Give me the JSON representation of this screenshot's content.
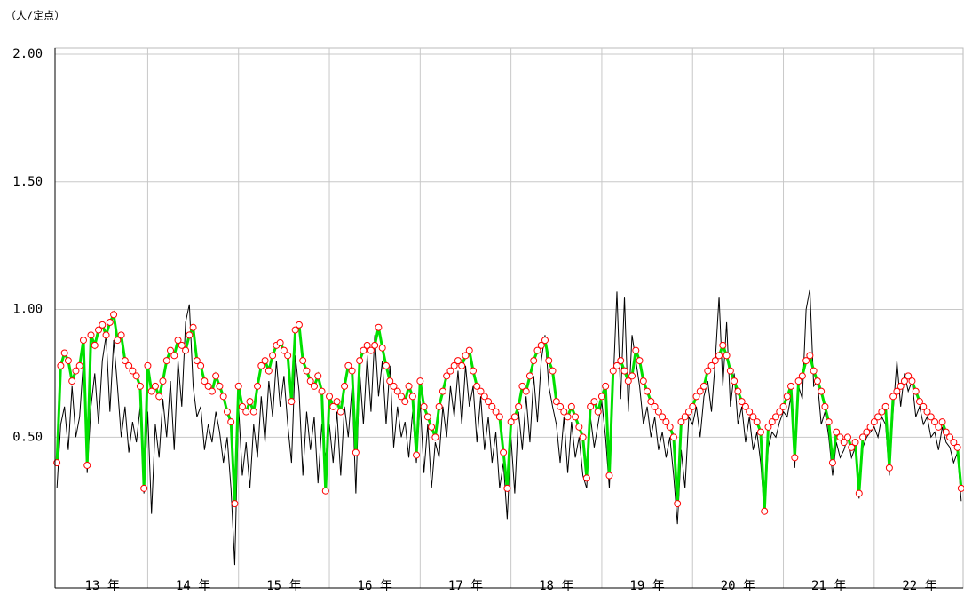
{
  "chart_data": {
    "type": "line",
    "y_unit_label": "（人/定点）",
    "categories": [
      null,
      null,
      null,
      null,
      null,
      null,
      null,
      null,
      null,
      null,
      null,
      null,
      "13 年",
      null,
      null,
      null,
      null,
      null,
      null,
      null,
      null,
      null,
      null,
      null,
      null,
      null,
      null,
      null,
      null,
      null,
      null,
      null,
      null,
      null,
      null,
      null,
      "14 年",
      null,
      null,
      null,
      null,
      null,
      null,
      null,
      null,
      null,
      null,
      null,
      null,
      null,
      null,
      null,
      null,
      null,
      null,
      null,
      null,
      null,
      null,
      null,
      "15 年",
      null,
      null,
      null,
      null,
      null,
      null,
      null,
      null,
      null,
      null,
      null,
      null,
      null,
      null,
      null,
      null,
      null,
      null,
      null,
      null,
      null,
      null,
      null,
      "16 年",
      null,
      null,
      null,
      null,
      null,
      null,
      null,
      null,
      null,
      null,
      null,
      null,
      null,
      null,
      null,
      null,
      null,
      null,
      null,
      null,
      null,
      null,
      null,
      "17 年",
      null,
      null,
      null,
      null,
      null,
      null,
      null,
      null,
      null,
      null,
      null,
      null,
      null,
      null,
      null,
      null,
      null,
      null,
      null,
      null,
      null,
      null,
      null,
      "18 年",
      null,
      null,
      null,
      null,
      null,
      null,
      null,
      null,
      null,
      null,
      null,
      null,
      null,
      null,
      null,
      null,
      null,
      null,
      null,
      null,
      null,
      null,
      null,
      "19 年",
      null,
      null,
      null,
      null,
      null,
      null,
      null,
      null,
      null,
      null,
      null,
      null,
      null,
      null,
      null,
      null,
      null,
      null,
      null,
      null,
      null,
      null,
      null,
      "20 年",
      null,
      null,
      null,
      null,
      null,
      null,
      null,
      null,
      null,
      null,
      null,
      null,
      null,
      null,
      null,
      null,
      null,
      null,
      null,
      null,
      null,
      null,
      null,
      "21 年",
      null,
      null,
      null,
      null,
      null,
      null,
      null,
      null,
      null,
      null,
      null,
      null,
      null,
      null,
      null,
      null,
      null,
      null,
      null,
      null,
      null,
      null,
      null,
      "22 年",
      null,
      null,
      null,
      null,
      null,
      null,
      null,
      null,
      null,
      null,
      null
    ],
    "series": [
      {
        "color": "#000000",
        "values": [
          0.3,
          0.55,
          0.62,
          0.45,
          0.7,
          0.5,
          0.58,
          0.8,
          0.36,
          0.62,
          0.75,
          0.55,
          0.8,
          0.9,
          0.6,
          0.88,
          0.7,
          0.5,
          0.62,
          0.44,
          0.56,
          0.48,
          0.62,
          0.28,
          0.6,
          0.2,
          0.55,
          0.42,
          0.65,
          0.5,
          0.72,
          0.45,
          0.8,
          0.62,
          0.95,
          1.02,
          0.7,
          0.58,
          0.62,
          0.45,
          0.55,
          0.48,
          0.6,
          0.52,
          0.4,
          0.5,
          0.3,
          0.0,
          0.62,
          0.35,
          0.48,
          0.3,
          0.55,
          0.42,
          0.66,
          0.48,
          0.72,
          0.58,
          0.8,
          0.62,
          0.74,
          0.55,
          0.4,
          0.82,
          0.68,
          0.35,
          0.6,
          0.45,
          0.58,
          0.32,
          0.55,
          0.42,
          0.55,
          0.4,
          0.6,
          0.35,
          0.62,
          0.5,
          0.7,
          0.28,
          0.76,
          0.55,
          0.82,
          0.6,
          0.9,
          0.66,
          0.8,
          0.55,
          0.78,
          0.46,
          0.62,
          0.5,
          0.56,
          0.42,
          0.6,
          0.4,
          0.64,
          0.36,
          0.55,
          0.3,
          0.48,
          0.42,
          0.62,
          0.5,
          0.7,
          0.58,
          0.76,
          0.55,
          0.78,
          0.62,
          0.7,
          0.48,
          0.66,
          0.45,
          0.58,
          0.4,
          0.52,
          0.3,
          0.4,
          0.18,
          0.5,
          0.28,
          0.6,
          0.45,
          0.66,
          0.48,
          0.74,
          0.56,
          0.8,
          0.9,
          0.7,
          0.62,
          0.55,
          0.4,
          0.58,
          0.36,
          0.56,
          0.42,
          0.5,
          0.35,
          0.3,
          0.58,
          0.46,
          0.55,
          0.64,
          0.5,
          0.3,
          0.7,
          1.07,
          0.65,
          1.05,
          0.6,
          0.9,
          0.8,
          0.7,
          0.55,
          0.62,
          0.5,
          0.58,
          0.45,
          0.52,
          0.42,
          0.5,
          0.35,
          0.16,
          0.45,
          0.3,
          0.58,
          0.55,
          0.62,
          0.5,
          0.66,
          0.72,
          0.6,
          0.8,
          1.05,
          0.7,
          0.95,
          0.62,
          0.75,
          0.55,
          0.62,
          0.48,
          0.58,
          0.45,
          0.52,
          0.4,
          0.2,
          0.46,
          0.52,
          0.5,
          0.56,
          0.6,
          0.58,
          0.66,
          0.38,
          0.7,
          0.65,
          1.0,
          1.08,
          0.7,
          0.72,
          0.55,
          0.6,
          0.5,
          0.35,
          0.48,
          0.42,
          0.45,
          0.5,
          0.42,
          0.46,
          0.26,
          0.46,
          0.5,
          0.52,
          0.54,
          0.5,
          0.58,
          0.55,
          0.35,
          0.6,
          0.8,
          0.62,
          0.75,
          0.68,
          0.72,
          0.58,
          0.62,
          0.55,
          0.58,
          0.5,
          0.52,
          0.45,
          0.54,
          0.48,
          0.46,
          0.4,
          0.44,
          0.25
        ]
      },
      {
        "color": "#00e000",
        "marker_color": "#ff0000",
        "values": [
          0.4,
          0.78,
          0.83,
          0.8,
          0.72,
          0.76,
          0.78,
          0.88,
          0.39,
          0.9,
          0.86,
          0.92,
          0.94,
          0.9,
          0.95,
          0.98,
          0.88,
          0.9,
          0.8,
          0.78,
          0.76,
          0.74,
          0.7,
          0.3,
          0.78,
          0.68,
          0.7,
          0.66,
          0.72,
          0.8,
          0.84,
          0.82,
          0.88,
          0.86,
          0.84,
          0.9,
          0.93,
          0.8,
          0.78,
          0.72,
          0.7,
          0.68,
          0.74,
          0.7,
          0.66,
          0.6,
          0.56,
          0.24,
          0.7,
          0.62,
          0.6,
          0.64,
          0.6,
          0.7,
          0.78,
          0.8,
          0.76,
          0.82,
          0.86,
          0.87,
          0.84,
          0.82,
          0.64,
          0.92,
          0.94,
          0.8,
          0.76,
          0.72,
          0.7,
          0.74,
          0.68,
          0.29,
          0.66,
          0.62,
          0.64,
          0.6,
          0.7,
          0.78,
          0.76,
          0.44,
          0.8,
          0.84,
          0.86,
          0.84,
          0.86,
          0.93,
          0.85,
          0.78,
          0.72,
          0.7,
          0.68,
          0.66,
          0.64,
          0.7,
          0.66,
          0.43,
          0.72,
          0.62,
          0.58,
          0.54,
          0.5,
          0.62,
          0.68,
          0.74,
          0.76,
          0.78,
          0.8,
          0.78,
          0.82,
          0.84,
          0.76,
          0.7,
          0.68,
          0.66,
          0.64,
          0.62,
          0.6,
          0.58,
          0.44,
          0.3,
          0.56,
          0.58,
          0.62,
          0.7,
          0.68,
          0.74,
          0.8,
          0.84,
          0.86,
          0.88,
          0.8,
          0.76,
          0.64,
          0.62,
          0.6,
          0.58,
          0.62,
          0.58,
          0.54,
          0.5,
          0.34,
          0.62,
          0.64,
          0.6,
          0.66,
          0.7,
          0.35,
          0.76,
          0.78,
          0.8,
          0.76,
          0.72,
          0.74,
          0.84,
          0.8,
          0.72,
          0.68,
          0.64,
          0.62,
          0.6,
          0.58,
          0.56,
          0.54,
          0.5,
          0.24,
          0.56,
          0.58,
          0.6,
          0.62,
          0.66,
          0.68,
          0.7,
          0.76,
          0.78,
          0.8,
          0.82,
          0.86,
          0.82,
          0.76,
          0.72,
          0.68,
          0.64,
          0.62,
          0.6,
          0.58,
          0.56,
          0.52,
          0.21,
          0.54,
          0.56,
          0.58,
          0.6,
          0.62,
          0.66,
          0.7,
          0.42,
          0.72,
          0.74,
          0.8,
          0.82,
          0.76,
          0.72,
          0.68,
          0.62,
          0.56,
          0.4,
          0.52,
          0.5,
          0.48,
          0.5,
          0.46,
          0.48,
          0.28,
          0.5,
          0.52,
          0.54,
          0.56,
          0.58,
          0.6,
          0.62,
          0.38,
          0.66,
          0.68,
          0.7,
          0.72,
          0.74,
          0.72,
          0.68,
          0.64,
          0.62,
          0.6,
          0.58,
          0.56,
          0.54,
          0.56,
          0.52,
          0.5,
          0.48,
          0.46,
          0.3
        ]
      }
    ],
    "ylim": [
      -0.09,
      2.0
    ],
    "yticks": [
      {
        "value": 0.5,
        "label": "0.50"
      },
      {
        "value": 1.0,
        "label": "1.00"
      },
      {
        "value": 1.5,
        "label": "1.50"
      },
      {
        "value": 2.0,
        "label": "2.00"
      }
    ],
    "grid": true
  }
}
